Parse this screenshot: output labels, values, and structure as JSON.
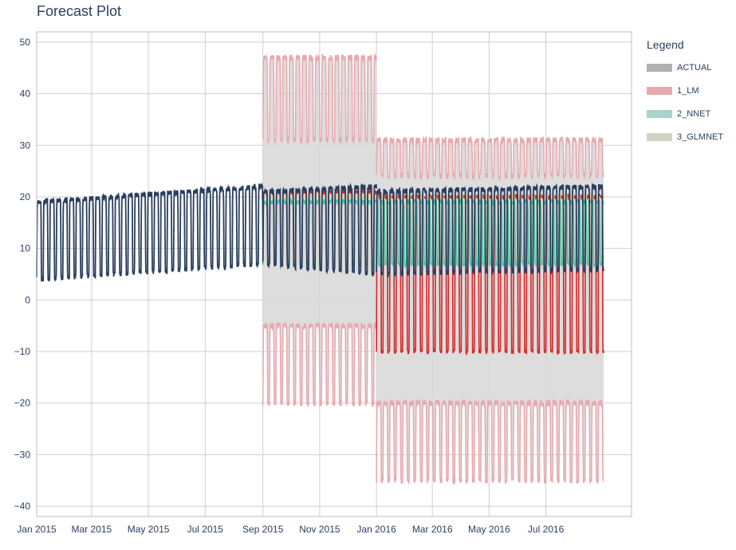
{
  "chart_data": {
    "type": "line",
    "title": "Forecast Plot",
    "xlabel": "",
    "ylabel": "",
    "x_range": [
      "2015-01-01",
      "2016-09-01"
    ],
    "ylim": [
      -42,
      52
    ],
    "y_ticks": [
      50,
      40,
      30,
      20,
      10,
      0,
      -10,
      -20,
      -30,
      -40
    ],
    "y_tick_labels": [
      "50",
      "40",
      "30",
      "20",
      "10",
      "0",
      "−10",
      "−20",
      "−30",
      "−40"
    ],
    "x_ticks": [
      "2015-01-01",
      "2015-03-01",
      "2015-05-01",
      "2015-07-01",
      "2015-09-01",
      "2015-11-01",
      "2016-01-01",
      "2016-03-01",
      "2016-05-01",
      "2016-07-01"
    ],
    "x_tick_labels": [
      "Jan 2015",
      "Mar 2015",
      "May 2015",
      "Jul 2015",
      "Sep 2015",
      "Nov 2015",
      "Jan 2016",
      "Mar 2016",
      "May 2016",
      "Jul 2016"
    ],
    "grid": true,
    "legend": {
      "title": "Legend",
      "placement": "right",
      "items": [
        {
          "name": "ACTUAL",
          "color": "#b0b0b0"
        },
        {
          "name": "1_LM",
          "color": "#e8a8ae"
        },
        {
          "name": "2_NNET",
          "color": "#a9d3c8"
        },
        {
          "name": "3_GLMNET",
          "color": "#d3d3c3"
        }
      ]
    },
    "colors": {
      "actual_line": "#2a3f5f",
      "lm_line": "#d62728",
      "lm_bound": "#e8a8ae",
      "nnet_line": "#2ec4a0",
      "glmnet_line": "#e8d49a",
      "band_fill": "#d9d9d9"
    },
    "series": [
      {
        "name": "ACTUAL",
        "segments": [
          {
            "start": "2015-01-01",
            "end": "2015-09-01",
            "peak_start": 19,
            "peak_end": 22,
            "trough_start": 4,
            "trough_end": 7
          },
          {
            "start": "2015-09-01",
            "end": "2016-01-01",
            "peak_start": 21,
            "peak_end": 22,
            "trough_start": 7,
            "trough_end": 5
          },
          {
            "start": "2016-01-01",
            "end": "2016-09-01",
            "peak_start": 21,
            "peak_end": 22,
            "trough_start": 5,
            "trough_end": 6
          }
        ]
      },
      {
        "name": "1_LM",
        "fit": [
          {
            "start": "2015-09-01",
            "end": "2016-01-01",
            "peak": 21,
            "trough": 7
          },
          {
            "start": "2016-01-01",
            "end": "2016-09-01",
            "peak": 20,
            "trough": -10
          }
        ],
        "interval": [
          {
            "start": "2015-09-01",
            "end": "2016-01-01",
            "upper_peak": 47,
            "upper_trough": 31,
            "lower_peak": -5,
            "lower_trough": -20
          },
          {
            "start": "2016-01-01",
            "end": "2016-09-01",
            "upper_peak": 31,
            "upper_trough": 24,
            "lower_peak": -20,
            "lower_trough": -35
          }
        ]
      },
      {
        "name": "2_NNET",
        "fit": [
          {
            "start": "2015-09-01",
            "end": "2016-09-01",
            "peak": 19,
            "trough": 7
          }
        ]
      },
      {
        "name": "3_GLMNET",
        "fit": [
          {
            "start": "2015-09-01",
            "end": "2016-09-01",
            "peak": 20,
            "trough": 8
          }
        ]
      }
    ]
  }
}
